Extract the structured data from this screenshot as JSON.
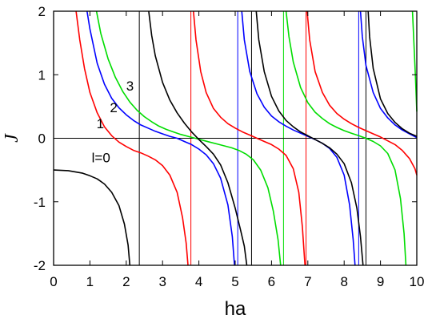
{
  "chart_data": {
    "type": "line",
    "title": "",
    "xlabel": "ha",
    "ylabel": "J",
    "xlim": [
      0,
      10
    ],
    "ylim": [
      -2,
      2
    ],
    "x_ticks": [
      "0",
      "1",
      "2",
      "3",
      "4",
      "5",
      "6",
      "7",
      "8",
      "9",
      "10"
    ],
    "y_ticks": [
      "-2",
      "-1",
      "0",
      "1",
      "2"
    ],
    "grid": false,
    "series": [
      {
        "name": "l=0",
        "color": "#000000",
        "label_at": [
          1.05,
          -0.38
        ],
        "branches": [
          [
            [
              0,
              -0.5
            ],
            [
              0.4,
              -0.51
            ],
            [
              0.8,
              -0.55
            ],
            [
              1.0,
              -0.59
            ],
            [
              1.2,
              -0.64
            ],
            [
              1.4,
              -0.72
            ],
            [
              1.6,
              -0.85
            ],
            [
              1.8,
              -1.06
            ],
            [
              1.95,
              -1.35
            ],
            [
              2.05,
              -1.68
            ],
            [
              2.1,
              -2.0
            ]
          ]
        ]
      },
      {
        "name": "1",
        "color": "#ff0000",
        "label_at": [
          1.18,
          0.16
        ],
        "branches": [
          [
            [
              0.62,
              2.0
            ],
            [
              0.72,
              1.55
            ],
            [
              0.85,
              1.1
            ],
            [
              1.0,
              0.72
            ],
            [
              1.2,
              0.4
            ],
            [
              1.4,
              0.18
            ],
            [
              1.6,
              0.04
            ],
            [
              1.8,
              -0.06
            ],
            [
              2.0,
              -0.13
            ],
            [
              2.2,
              -0.19
            ],
            [
              2.4,
              -0.23
            ],
            [
              2.6,
              -0.28
            ],
            [
              2.8,
              -0.34
            ],
            [
              3.0,
              -0.43
            ],
            [
              3.2,
              -0.58
            ],
            [
              3.4,
              -0.85
            ],
            [
              3.55,
              -1.25
            ],
            [
              3.65,
              -1.65
            ],
            [
              3.7,
              -2.0
            ]
          ],
          [
            [
              3.85,
              2.0
            ],
            [
              3.92,
              1.55
            ],
            [
              4.05,
              1.05
            ],
            [
              4.2,
              0.72
            ],
            [
              4.4,
              0.47
            ],
            [
              4.6,
              0.33
            ],
            [
              4.8,
              0.23
            ],
            [
              5.0,
              0.16
            ],
            [
              5.2,
              0.1
            ],
            [
              5.4,
              0.05
            ],
            [
              5.6,
              0.0
            ],
            [
              5.8,
              -0.05
            ],
            [
              6.0,
              -0.1
            ],
            [
              6.2,
              -0.17
            ],
            [
              6.4,
              -0.27
            ],
            [
              6.6,
              -0.48
            ],
            [
              6.75,
              -0.85
            ],
            [
              6.85,
              -1.4
            ],
            [
              6.92,
              -2.0
            ]
          ],
          [
            [
              6.98,
              2.0
            ],
            [
              7.05,
              1.55
            ],
            [
              7.2,
              1.05
            ],
            [
              7.4,
              0.72
            ],
            [
              7.6,
              0.52
            ],
            [
              7.8,
              0.39
            ],
            [
              8.0,
              0.3
            ],
            [
              8.2,
              0.23
            ],
            [
              8.4,
              0.17
            ],
            [
              8.6,
              0.12
            ],
            [
              8.8,
              0.07
            ],
            [
              9.0,
              0.02
            ],
            [
              9.2,
              -0.04
            ],
            [
              9.4,
              -0.1
            ],
            [
              9.6,
              -0.19
            ],
            [
              9.8,
              -0.32
            ],
            [
              9.95,
              -0.48
            ],
            [
              10.0,
              -0.58
            ]
          ]
        ]
      },
      {
        "name": "2",
        "color": "#0000ff",
        "label_at": [
          1.55,
          0.41
        ],
        "branches": [
          [
            [
              0.92,
              2.0
            ],
            [
              1.0,
              1.72
            ],
            [
              1.2,
              1.18
            ],
            [
              1.4,
              0.85
            ],
            [
              1.6,
              0.63
            ],
            [
              1.8,
              0.48
            ],
            [
              2.0,
              0.37
            ],
            [
              2.2,
              0.28
            ],
            [
              2.4,
              0.21
            ],
            [
              2.6,
              0.16
            ],
            [
              2.8,
              0.11
            ],
            [
              3.0,
              0.07
            ],
            [
              3.2,
              0.03
            ],
            [
              3.4,
              0.0
            ],
            [
              3.6,
              -0.05
            ],
            [
              3.8,
              -0.1
            ],
            [
              4.0,
              -0.17
            ],
            [
              4.2,
              -0.26
            ],
            [
              4.4,
              -0.4
            ],
            [
              4.6,
              -0.63
            ],
            [
              4.8,
              -1.05
            ],
            [
              4.92,
              -1.55
            ],
            [
              4.98,
              -2.0
            ]
          ],
          [
            [
              5.18,
              2.0
            ],
            [
              5.25,
              1.55
            ],
            [
              5.4,
              1.05
            ],
            [
              5.6,
              0.7
            ],
            [
              5.8,
              0.49
            ],
            [
              6.0,
              0.35
            ],
            [
              6.2,
              0.26
            ],
            [
              6.4,
              0.19
            ],
            [
              6.6,
              0.13
            ],
            [
              6.8,
              0.08
            ],
            [
              7.0,
              0.03
            ],
            [
              7.2,
              -0.02
            ],
            [
              7.4,
              -0.08
            ],
            [
              7.6,
              -0.16
            ],
            [
              7.8,
              -0.3
            ],
            [
              8.0,
              -0.58
            ],
            [
              8.15,
              -1.05
            ],
            [
              8.25,
              -1.6
            ],
            [
              8.3,
              -2.0
            ]
          ],
          [
            [
              8.45,
              2.0
            ],
            [
              8.5,
              1.6
            ],
            [
              8.6,
              1.15
            ],
            [
              8.8,
              0.72
            ],
            [
              9.0,
              0.47
            ],
            [
              9.2,
              0.32
            ],
            [
              9.4,
              0.21
            ],
            [
              9.6,
              0.13
            ],
            [
              9.8,
              0.07
            ],
            [
              10.0,
              0.01
            ]
          ]
        ]
      },
      {
        "name": "3",
        "color": "#00dd00",
        "label_at": [
          2.0,
          0.75
        ],
        "branches": [
          [
            [
              1.18,
              2.0
            ],
            [
              1.3,
              1.65
            ],
            [
              1.5,
              1.25
            ],
            [
              1.7,
              0.96
            ],
            [
              1.9,
              0.74
            ],
            [
              2.1,
              0.57
            ],
            [
              2.3,
              0.44
            ],
            [
              2.5,
              0.34
            ],
            [
              2.7,
              0.26
            ],
            [
              2.9,
              0.19
            ],
            [
              3.1,
              0.14
            ],
            [
              3.3,
              0.1
            ],
            [
              3.5,
              0.06
            ],
            [
              3.7,
              0.03
            ],
            [
              3.9,
              0.0
            ],
            [
              4.1,
              -0.03
            ],
            [
              4.3,
              -0.06
            ],
            [
              4.5,
              -0.09
            ],
            [
              4.7,
              -0.12
            ],
            [
              4.9,
              -0.15
            ],
            [
              5.1,
              -0.19
            ],
            [
              5.3,
              -0.25
            ],
            [
              5.5,
              -0.34
            ],
            [
              5.7,
              -0.5
            ],
            [
              5.9,
              -0.78
            ],
            [
              6.05,
              -1.15
            ],
            [
              6.18,
              -1.6
            ],
            [
              6.25,
              -2.0
            ]
          ],
          [
            [
              6.4,
              2.0
            ],
            [
              6.48,
              1.6
            ],
            [
              6.6,
              1.2
            ],
            [
              6.8,
              0.8
            ],
            [
              7.0,
              0.56
            ],
            [
              7.2,
              0.41
            ],
            [
              7.4,
              0.31
            ],
            [
              7.6,
              0.23
            ],
            [
              7.8,
              0.17
            ],
            [
              8.0,
              0.12
            ],
            [
              8.2,
              0.08
            ],
            [
              8.4,
              0.04
            ],
            [
              8.6,
              0.0
            ],
            [
              8.8,
              -0.05
            ],
            [
              9.0,
              -0.12
            ],
            [
              9.2,
              -0.24
            ],
            [
              9.4,
              -0.5
            ],
            [
              9.55,
              -0.95
            ],
            [
              9.65,
              -1.5
            ],
            [
              9.7,
              -2.0
            ]
          ],
          [
            [
              9.88,
              2.0
            ],
            [
              9.92,
              1.5
            ],
            [
              9.96,
              1.0
            ],
            [
              10.0,
              0.42
            ]
          ]
        ]
      },
      {
        "name": "",
        "color": "#000000",
        "branches": [
          [
            [
              2.62,
              2.0
            ],
            [
              2.7,
              1.62
            ],
            [
              2.8,
              1.3
            ],
            [
              3.0,
              0.88
            ],
            [
              3.2,
              0.6
            ],
            [
              3.4,
              0.4
            ],
            [
              3.6,
              0.24
            ],
            [
              3.8,
              0.1
            ],
            [
              4.0,
              -0.02
            ],
            [
              4.2,
              -0.13
            ],
            [
              4.4,
              -0.25
            ],
            [
              4.6,
              -0.42
            ],
            [
              4.8,
              -0.7
            ],
            [
              5.0,
              -1.1
            ],
            [
              5.15,
              -1.45
            ],
            [
              5.25,
              -1.7
            ],
            [
              5.32,
              -2.0
            ]
          ],
          [
            [
              5.58,
              2.0
            ],
            [
              5.65,
              1.55
            ],
            [
              5.8,
              1.05
            ],
            [
              6.0,
              0.66
            ],
            [
              6.2,
              0.43
            ],
            [
              6.4,
              0.28
            ],
            [
              6.6,
              0.18
            ],
            [
              6.8,
              0.1
            ],
            [
              7.0,
              0.04
            ],
            [
              7.2,
              -0.02
            ],
            [
              7.4,
              -0.08
            ],
            [
              7.6,
              -0.15
            ],
            [
              7.8,
              -0.25
            ],
            [
              8.0,
              -0.4
            ],
            [
              8.2,
              -0.7
            ],
            [
              8.35,
              -1.1
            ],
            [
              8.45,
              -1.55
            ],
            [
              8.52,
              -2.0
            ]
          ],
          [
            [
              8.66,
              2.0
            ],
            [
              8.7,
              1.6
            ],
            [
              8.8,
              1.1
            ],
            [
              9.0,
              0.62
            ],
            [
              9.2,
              0.39
            ],
            [
              9.4,
              0.25
            ],
            [
              9.6,
              0.15
            ],
            [
              9.8,
              0.08
            ],
            [
              10.0,
              0.03
            ]
          ]
        ]
      }
    ],
    "vertical_lines": [
      {
        "x": 2.36,
        "color": "#000000"
      },
      {
        "x": 3.78,
        "color": "#ff0000"
      },
      {
        "x": 5.07,
        "color": "#0000ff"
      },
      {
        "x": 5.45,
        "color": "#000000"
      },
      {
        "x": 6.33,
        "color": "#00dd00"
      },
      {
        "x": 6.95,
        "color": "#ff0000"
      },
      {
        "x": 8.4,
        "color": "#0000ff"
      },
      {
        "x": 8.6,
        "color": "#000000"
      }
    ],
    "horizontal_lines": [
      {
        "y": 0,
        "color": "#000000"
      }
    ]
  }
}
